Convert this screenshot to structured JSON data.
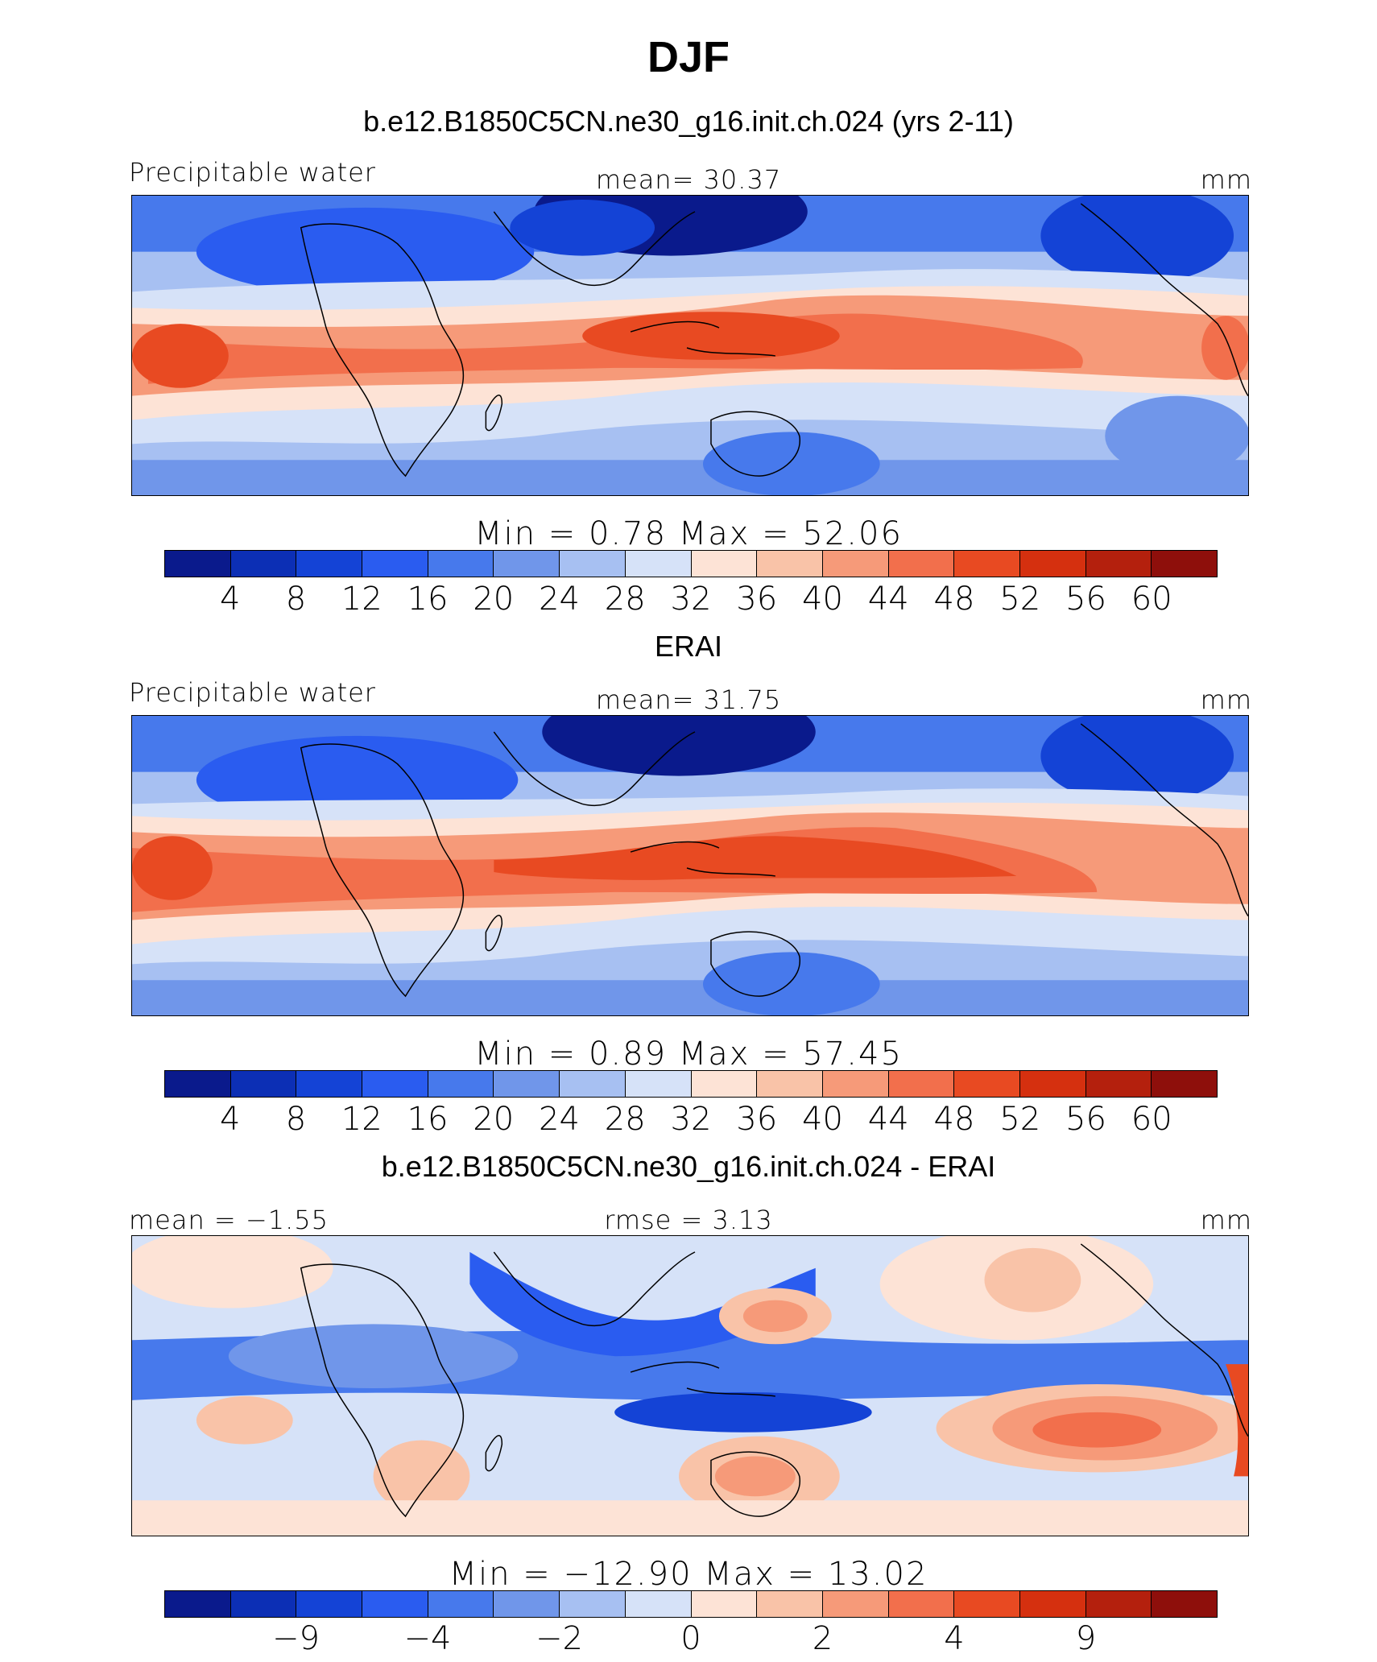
{
  "title": "DJF",
  "panels": [
    {
      "title": "b.e12.B1850C5CN.ne30_g16.init.ch.024 (yrs 2-11)",
      "left_label": "Precipitable water",
      "center_label": "mean=   30.37",
      "right_label": "mm",
      "minmax": "Min  =     0.78  Max  =    52.06",
      "ticks": [
        "4",
        "8",
        "12",
        "16",
        "20",
        "24",
        "28",
        "32",
        "36",
        "40",
        "44",
        "48",
        "52",
        "56",
        "60"
      ]
    },
    {
      "title": "ERAI",
      "left_label": "Precipitable water",
      "center_label": "mean=   31.75",
      "right_label": "mm",
      "minmax": "Min  =     0.89  Max  =    57.45",
      "ticks": [
        "4",
        "8",
        "12",
        "16",
        "20",
        "24",
        "28",
        "32",
        "36",
        "40",
        "44",
        "48",
        "52",
        "56",
        "60"
      ]
    },
    {
      "title": "b.e12.B1850C5CN.ne30_g16.init.ch.024 - ERAI",
      "left_label": "mean  =   −1.55",
      "center_label": "rmse  =     3.13",
      "right_label": "mm",
      "minmax": "Min  =  −12.90  Max  =    13.02",
      "ticks": [
        "−9",
        "−4",
        "−2",
        "0",
        "2",
        "4",
        "9"
      ]
    }
  ],
  "colorbar": {
    "colors": [
      "#0a1a8c",
      "#0c2fb5",
      "#1443d6",
      "#2a5cf0",
      "#4779ec",
      "#7096ea",
      "#a7c0f2",
      "#d6e2f8",
      "#fde3d6",
      "#f9c3a8",
      "#f69a79",
      "#f26f4c",
      "#e84a22",
      "#d5300f",
      "#b4200d",
      "#8e0f0b"
    ]
  },
  "chart_data": {
    "type": "map",
    "title": "DJF",
    "units": "mm",
    "panels": [
      {
        "name": "b.e12.B1850C5CN.ne30_g16.init.ch.024 (yrs 2-11)",
        "variable": "Precipitable water",
        "mean": 30.37,
        "min": 0.78,
        "max": 52.06,
        "contour_levels": [
          4,
          8,
          12,
          16,
          20,
          24,
          28,
          32,
          36,
          40,
          44,
          48,
          52,
          56,
          60
        ]
      },
      {
        "name": "ERAI",
        "variable": "Precipitable water",
        "mean": 31.75,
        "min": 0.89,
        "max": 57.45,
        "contour_levels": [
          4,
          8,
          12,
          16,
          20,
          24,
          28,
          32,
          36,
          40,
          44,
          48,
          52,
          56,
          60
        ]
      },
      {
        "name": "b.e12.B1850C5CN.ne30_g16.init.ch.024 - ERAI",
        "mean": -1.55,
        "rmse": 3.13,
        "min": -12.9,
        "max": 13.02,
        "contour_levels": [
          -9,
          -4,
          -2,
          0,
          2,
          4,
          9
        ]
      }
    ]
  }
}
